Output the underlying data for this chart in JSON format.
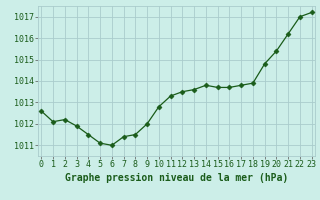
{
  "x": [
    0,
    1,
    2,
    3,
    4,
    5,
    6,
    7,
    8,
    9,
    10,
    11,
    12,
    13,
    14,
    15,
    16,
    17,
    18,
    19,
    20,
    21,
    22,
    23
  ],
  "y": [
    1012.6,
    1012.1,
    1012.2,
    1011.9,
    1011.5,
    1011.1,
    1011.0,
    1011.4,
    1011.5,
    1012.0,
    1012.8,
    1013.3,
    1013.5,
    1013.6,
    1013.8,
    1013.7,
    1013.7,
    1013.8,
    1013.9,
    1014.8,
    1015.4,
    1016.2,
    1017.0,
    1017.2
  ],
  "line_color": "#1a5c1a",
  "marker": "D",
  "marker_size": 2.5,
  "bg_color": "#cceee8",
  "grid_color": "#aacccc",
  "title": "Graphe pression niveau de la mer (hPa)",
  "ylim": [
    1010.5,
    1017.5
  ],
  "yticks": [
    1011,
    1012,
    1013,
    1014,
    1015,
    1016,
    1017
  ],
  "xticks": [
    0,
    1,
    2,
    3,
    4,
    5,
    6,
    7,
    8,
    9,
    10,
    11,
    12,
    13,
    14,
    15,
    16,
    17,
    18,
    19,
    20,
    21,
    22,
    23
  ],
  "title_fontsize": 7.0,
  "tick_fontsize": 6.0,
  "xlim_left": -0.3,
  "xlim_right": 23.3
}
